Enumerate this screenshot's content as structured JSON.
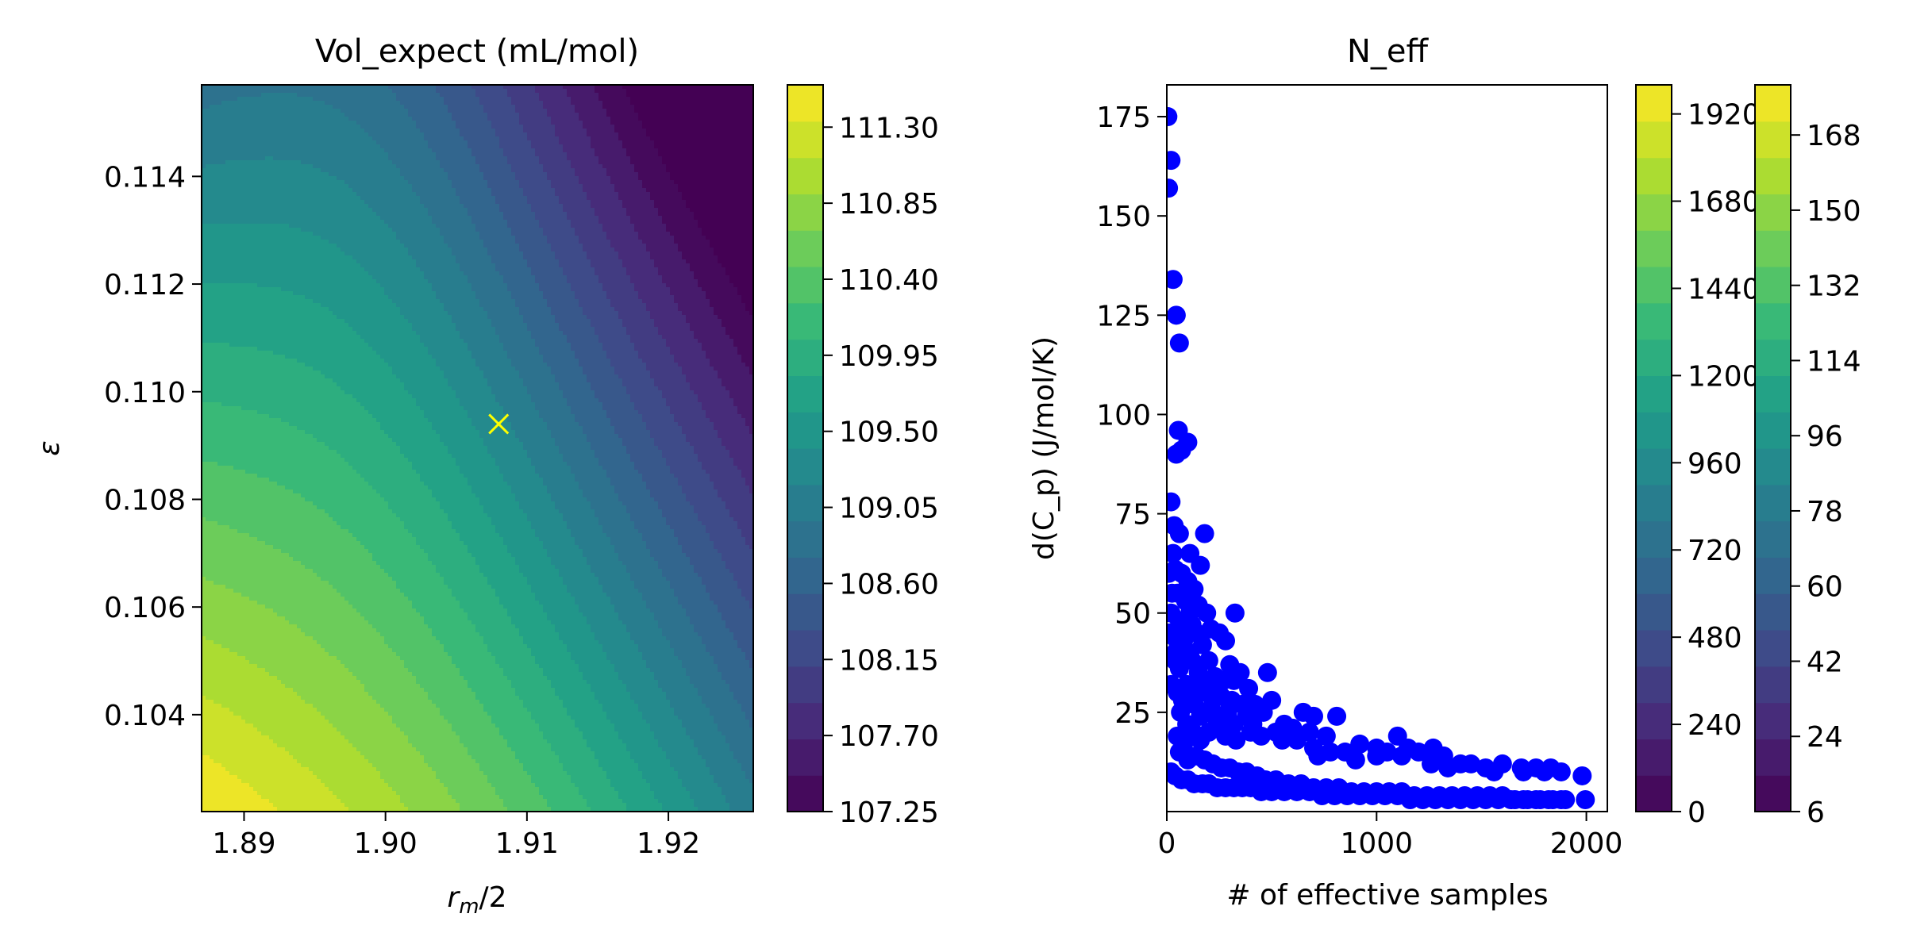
{
  "chart_data": [
    {
      "type": "contour",
      "title": "Vol_expect (mL/mol)",
      "xlabel_main": "r",
      "xlabel_sub": "m",
      "xlabel_tail": "/2",
      "ylabel": "ε",
      "xlim": [
        1.887,
        1.926
      ],
      "ylim": [
        0.1022,
        0.1157
      ],
      "xticks": [
        1.89,
        1.9,
        1.91,
        1.92
      ],
      "xtick_labels": [
        "1.89",
        "1.90",
        "1.91",
        "1.92"
      ],
      "yticks": [
        0.104,
        0.106,
        0.108,
        0.11,
        0.112,
        0.114
      ],
      "ytick_labels": [
        "0.104",
        "0.106",
        "0.108",
        "0.110",
        "0.112",
        "0.114"
      ],
      "colormap": "viridis",
      "levels": [
        107.25,
        111.55
      ],
      "colorbar_ticks": [
        107.25,
        107.7,
        108.15,
        108.6,
        109.05,
        109.5,
        109.95,
        110.4,
        110.85,
        111.3
      ],
      "colorbar_tick_labels": [
        "107.25",
        "107.70",
        "108.15",
        "108.60",
        "109.05",
        "109.50",
        "109.95",
        "110.40",
        "110.85",
        "111.30"
      ],
      "marker": {
        "x": 1.908,
        "y": 0.1094,
        "symbol": "x",
        "color": "#ffff00"
      }
    },
    {
      "type": "scatter",
      "title": "N_eff",
      "xlabel": "# of effective samples",
      "ylabel": "d(C_p) (J/mol/K)",
      "xlim": [
        0,
        2100
      ],
      "ylim": [
        0,
        183
      ],
      "xticks": [
        0,
        1000,
        2000
      ],
      "xtick_labels": [
        "0",
        "1000",
        "2000"
      ],
      "yticks": [
        25,
        50,
        75,
        100,
        125,
        150,
        175
      ],
      "ytick_labels": [
        "25",
        "50",
        "75",
        "100",
        "125",
        "150",
        "175"
      ],
      "point_color": "#0000ff",
      "points": [
        [
          5,
          175
        ],
        [
          20,
          164
        ],
        [
          8,
          157
        ],
        [
          30,
          134
        ],
        [
          45,
          125
        ],
        [
          60,
          118
        ],
        [
          55,
          96
        ],
        [
          100,
          93
        ],
        [
          70,
          91
        ],
        [
          45,
          90
        ],
        [
          20,
          78
        ],
        [
          35,
          72
        ],
        [
          60,
          70
        ],
        [
          180,
          70
        ],
        [
          30,
          65
        ],
        [
          110,
          65
        ],
        [
          160,
          62
        ],
        [
          40,
          61
        ],
        [
          70,
          60
        ],
        [
          100,
          58
        ],
        [
          130,
          56
        ],
        [
          50,
          55
        ],
        [
          90,
          53
        ],
        [
          150,
          52
        ],
        [
          190,
          50
        ],
        [
          325,
          50
        ],
        [
          20,
          50
        ],
        [
          60,
          48
        ],
        [
          120,
          47
        ],
        [
          210,
          46
        ],
        [
          250,
          45
        ],
        [
          35,
          44
        ],
        [
          80,
          43
        ],
        [
          170,
          42
        ],
        [
          280,
          43
        ],
        [
          40,
          40
        ],
        [
          110,
          40
        ],
        [
          200,
          38
        ],
        [
          300,
          37
        ],
        [
          350,
          35
        ],
        [
          480,
          35
        ],
        [
          60,
          36
        ],
        [
          150,
          35
        ],
        [
          230,
          34
        ],
        [
          270,
          33
        ],
        [
          320,
          33
        ],
        [
          390,
          31
        ],
        [
          20,
          32
        ],
        [
          95,
          32
        ],
        [
          140,
          30
        ],
        [
          180,
          30
        ],
        [
          260,
          29
        ],
        [
          310,
          28
        ],
        [
          360,
          27
        ],
        [
          420,
          27
        ],
        [
          500,
          28
        ],
        [
          50,
          30
        ],
        [
          75,
          28
        ],
        [
          130,
          27
        ],
        [
          210,
          26
        ],
        [
          290,
          25
        ],
        [
          380,
          24
        ],
        [
          460,
          25
        ],
        [
          560,
          22
        ],
        [
          650,
          25
        ],
        [
          700,
          24
        ],
        [
          810,
          24
        ],
        [
          160,
          24
        ],
        [
          240,
          23
        ],
        [
          320,
          22
        ],
        [
          410,
          22
        ],
        [
          520,
          20
        ],
        [
          600,
          21
        ],
        [
          680,
          20
        ],
        [
          760,
          19
        ],
        [
          400,
          20
        ],
        [
          450,
          19
        ],
        [
          550,
          18
        ],
        [
          620,
          18
        ],
        [
          700,
          16
        ],
        [
          780,
          15
        ],
        [
          850,
          15
        ],
        [
          920,
          17
        ],
        [
          1000,
          16
        ],
        [
          1100,
          19
        ],
        [
          1150,
          16
        ],
        [
          1050,
          15
        ],
        [
          1200,
          15
        ],
        [
          1270,
          16
        ],
        [
          1320,
          14
        ],
        [
          1400,
          12
        ],
        [
          1450,
          12
        ],
        [
          1520,
          11
        ],
        [
          1600,
          12
        ],
        [
          1690,
          11
        ],
        [
          1760,
          11
        ],
        [
          1830,
          11
        ],
        [
          1880,
          10
        ],
        [
          1340,
          11
        ],
        [
          1260,
          12
        ],
        [
          1120,
          14
        ],
        [
          1000,
          14
        ],
        [
          720,
          14
        ],
        [
          900,
          13
        ],
        [
          1980,
          9
        ],
        [
          1560,
          10
        ],
        [
          1700,
          10
        ],
        [
          1800,
          10
        ],
        [
          50,
          19
        ],
        [
          80,
          17
        ],
        [
          60,
          15
        ],
        [
          100,
          13
        ],
        [
          140,
          14
        ],
        [
          180,
          13
        ],
        [
          220,
          12
        ],
        [
          260,
          11
        ],
        [
          300,
          11
        ],
        [
          340,
          10
        ],
        [
          380,
          10
        ],
        [
          430,
          9
        ],
        [
          470,
          8
        ],
        [
          520,
          8
        ],
        [
          580,
          7
        ],
        [
          640,
          7
        ],
        [
          700,
          6
        ],
        [
          760,
          6
        ],
        [
          820,
          6
        ],
        [
          880,
          5
        ],
        [
          940,
          5
        ],
        [
          1000,
          5
        ],
        [
          1060,
          5
        ],
        [
          1120,
          5
        ],
        [
          1180,
          4
        ],
        [
          1240,
          4
        ],
        [
          1300,
          4
        ],
        [
          1360,
          4
        ],
        [
          1420,
          4
        ],
        [
          1480,
          4
        ],
        [
          1540,
          4
        ],
        [
          1600,
          4
        ],
        [
          1660,
          3
        ],
        [
          1720,
          3
        ],
        [
          1780,
          3
        ],
        [
          1840,
          3
        ],
        [
          1900,
          3
        ],
        [
          1995,
          3
        ],
        [
          20,
          10
        ],
        [
          40,
          9
        ],
        [
          70,
          8
        ],
        [
          100,
          8
        ],
        [
          130,
          7
        ],
        [
          170,
          7
        ],
        [
          200,
          7
        ],
        [
          240,
          6
        ],
        [
          280,
          6
        ],
        [
          320,
          6
        ],
        [
          360,
          6
        ],
        [
          400,
          6
        ],
        [
          450,
          5
        ],
        [
          500,
          5
        ],
        [
          560,
          5
        ],
        [
          620,
          5
        ],
        [
          680,
          5
        ],
        [
          740,
          4
        ],
        [
          800,
          4
        ],
        [
          860,
          4
        ],
        [
          920,
          4
        ],
        [
          980,
          4
        ],
        [
          1040,
          4
        ],
        [
          1100,
          4
        ],
        [
          1160,
          3
        ],
        [
          1220,
          3
        ],
        [
          1280,
          3
        ],
        [
          1340,
          3
        ],
        [
          1400,
          3
        ],
        [
          1460,
          3
        ],
        [
          1520,
          3
        ],
        [
          1580,
          3
        ],
        [
          1640,
          3
        ],
        [
          1700,
          3
        ],
        [
          1760,
          3
        ],
        [
          1820,
          3
        ],
        [
          1880,
          3
        ],
        [
          10,
          60
        ],
        [
          25,
          55
        ],
        [
          15,
          45
        ],
        [
          40,
          38
        ],
        [
          55,
          42
        ],
        [
          85,
          45
        ],
        [
          120,
          38
        ],
        [
          170,
          33
        ],
        [
          220,
          30
        ],
        [
          65,
          25
        ],
        [
          95,
          22
        ],
        [
          125,
          20
        ],
        [
          160,
          18
        ],
        [
          200,
          20
        ],
        [
          240,
          22
        ],
        [
          280,
          19
        ],
        [
          110,
          50
        ],
        [
          140,
          45
        ],
        [
          200,
          25
        ],
        [
          330,
          18
        ]
      ],
      "colorbar1_ticks": [
        0,
        240,
        480,
        720,
        960,
        1200,
        1440,
        1680,
        1920
      ],
      "colorbar1_tick_labels": [
        "0",
        "240",
        "480",
        "720",
        "960",
        "1200",
        "1440",
        "1680",
        "1920"
      ],
      "colorbar1_range": [
        0,
        2000
      ],
      "colorbar2_ticks": [
        6,
        24,
        42,
        60,
        78,
        96,
        114,
        132,
        150,
        168
      ],
      "colorbar2_tick_labels": [
        "6",
        "24",
        "42",
        "60",
        "78",
        "96",
        "114",
        "132",
        "150",
        "168"
      ],
      "colorbar2_range": [
        6,
        180
      ]
    }
  ]
}
